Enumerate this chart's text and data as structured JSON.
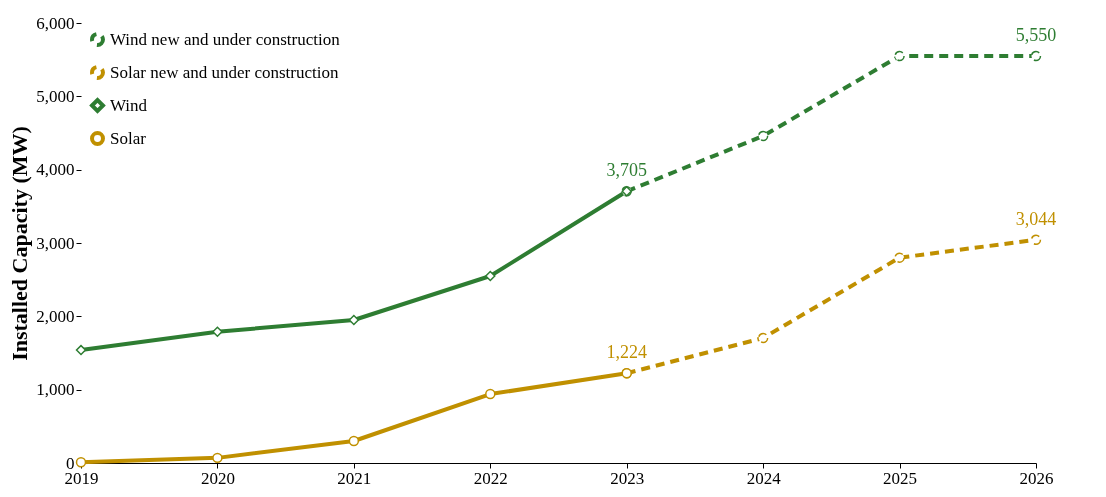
{
  "chart_data": {
    "type": "line",
    "ylabel": "Installed Capacity (MW)",
    "x": [
      2019,
      2020,
      2021,
      2022,
      2023,
      2024,
      2025,
      2026
    ],
    "xlim": [
      2019,
      2026
    ],
    "xticks": [
      2019,
      2020,
      2021,
      2022,
      2023,
      2024,
      2025,
      2026
    ],
    "ylim": [
      0,
      6000
    ],
    "yticks": [
      0,
      {
        "value": 1000,
        "label": "1,000"
      },
      {
        "value": 2000,
        "label": "2,000"
      },
      {
        "value": 3000,
        "label": "3,000"
      },
      {
        "value": 4000,
        "label": "4,000"
      },
      {
        "value": 5000,
        "label": "5,000"
      },
      {
        "value": 6000,
        "label": "6,000"
      }
    ],
    "grid": false,
    "legend": "top left",
    "series": [
      {
        "name": "Wind new and under construction",
        "color": "#2e7d32",
        "line_style": "dashed",
        "marker": "circle",
        "values": [
          null,
          null,
          null,
          null,
          3705,
          4460,
          5550,
          5550
        ],
        "value_labels": [
          null,
          null,
          null,
          null,
          null,
          null,
          null,
          "5,550"
        ]
      },
      {
        "name": "Solar new and under construction",
        "color": "#c09000",
        "line_style": "dashed",
        "marker": "circle",
        "values": [
          null,
          null,
          null,
          null,
          1224,
          1705,
          2800,
          3044
        ],
        "value_labels": [
          null,
          null,
          null,
          null,
          null,
          null,
          null,
          "3,044"
        ]
      },
      {
        "name": "Wind",
        "color": "#2e7d32",
        "line_style": "solid",
        "marker": "diamond",
        "values": [
          1540,
          1790,
          1950,
          2550,
          3705,
          null,
          null,
          null
        ],
        "value_labels": [
          null,
          null,
          null,
          null,
          "3,705",
          null,
          null,
          null
        ]
      },
      {
        "name": "Solar",
        "color": "#c09000",
        "line_style": "solid",
        "marker": "circle",
        "values": [
          10,
          70,
          300,
          940,
          1224,
          null,
          null,
          null
        ],
        "value_labels": [
          null,
          null,
          null,
          null,
          "1,224",
          null,
          null,
          null
        ]
      }
    ]
  }
}
